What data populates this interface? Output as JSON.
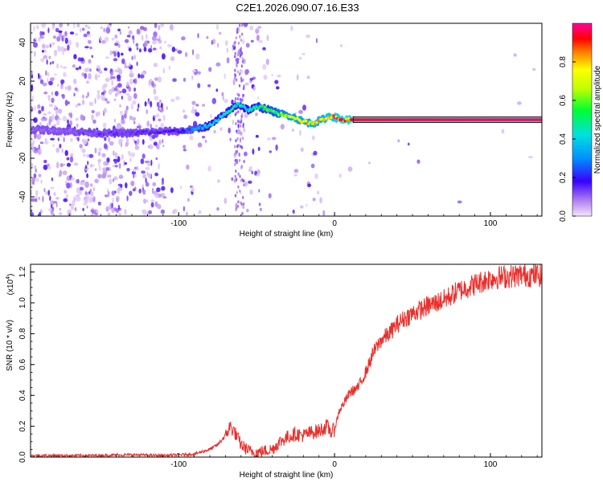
{
  "title": "C2E1.2026.090.07.16.E33",
  "chart_data": [
    {
      "type": "heatmap",
      "title": "C2E1.2026.090.07.16.E33",
      "xlabel": "Height of straight line (km)",
      "ylabel": "Frequency (Hz)",
      "xlim": [
        -195,
        133
      ],
      "ylim": [
        -50,
        50
      ],
      "xticks": [
        -100,
        0,
        100
      ],
      "yticks": [
        -40,
        -20,
        0,
        20,
        40
      ],
      "colorbar": {
        "label": "Normalized spectral amplitude",
        "range": [
          0,
          1
        ],
        "ticks": [
          0.0,
          0.2,
          0.4,
          0.6,
          0.8
        ],
        "tick_labels": [
          "0.0",
          "0.2",
          "0.4",
          "0.6",
          "0.8"
        ]
      },
      "ridge": {
        "x": [
          -195,
          -170,
          -150,
          -130,
          -110,
          -100,
          -90,
          -80,
          -70,
          -62,
          -55,
          -48,
          -42,
          -35,
          -28,
          -20,
          -14,
          -8,
          -3,
          5,
          15,
          133
        ],
        "freq": [
          -5,
          -6,
          -7,
          -7,
          -6,
          -6,
          -5,
          -3,
          3,
          8,
          5,
          7,
          5,
          3,
          2,
          -1,
          -2,
          0,
          2,
          0,
          0,
          0
        ],
        "amp": [
          0.1,
          0.12,
          0.14,
          0.14,
          0.15,
          0.18,
          0.3,
          0.4,
          0.45,
          0.45,
          0.4,
          0.5,
          0.55,
          0.6,
          0.7,
          0.75,
          0.75,
          0.8,
          0.85,
          0.9,
          0.95,
          0.97
        ]
      }
    },
    {
      "type": "line",
      "xlabel": "Height of straight line (km)",
      "ylabel": "SNR (10 * v/v)",
      "y_multiplier": "(x10",
      "y_multiplier_exp": "4",
      "y_multiplier_close": ")",
      "xlim": [
        -195,
        133
      ],
      "ylim": [
        0,
        1.25
      ],
      "xticks": [
        -100,
        0,
        100
      ],
      "yticks": [
        0.0,
        0.2,
        0.4,
        0.6,
        0.8,
        1.0,
        1.2
      ],
      "ytick_labels": [
        "0.0",
        "0.2",
        "0.4",
        "0.6",
        "0.8",
        "1.0",
        "1.2"
      ],
      "color": "#e8302c",
      "x": [
        -195,
        -160,
        -130,
        -110,
        -90,
        -80,
        -75,
        -70,
        -67,
        -64,
        -60,
        -55,
        -50,
        -45,
        -40,
        -35,
        -30,
        -25,
        -20,
        -15,
        -10,
        -5,
        -2,
        0,
        3,
        6,
        10,
        15,
        20,
        25,
        30,
        35,
        40,
        45,
        50,
        60,
        70,
        80,
        90,
        100,
        110,
        120,
        133
      ],
      "values": [
        0.01,
        0.01,
        0.015,
        0.01,
        0.02,
        0.05,
        0.08,
        0.14,
        0.2,
        0.16,
        0.08,
        0.04,
        0.03,
        0.04,
        0.05,
        0.1,
        0.13,
        0.15,
        0.14,
        0.16,
        0.17,
        0.2,
        0.16,
        0.18,
        0.3,
        0.35,
        0.42,
        0.45,
        0.55,
        0.68,
        0.76,
        0.8,
        0.86,
        0.9,
        0.93,
        0.98,
        1.02,
        1.08,
        1.12,
        1.16,
        1.17,
        1.18,
        1.18
      ]
    }
  ]
}
